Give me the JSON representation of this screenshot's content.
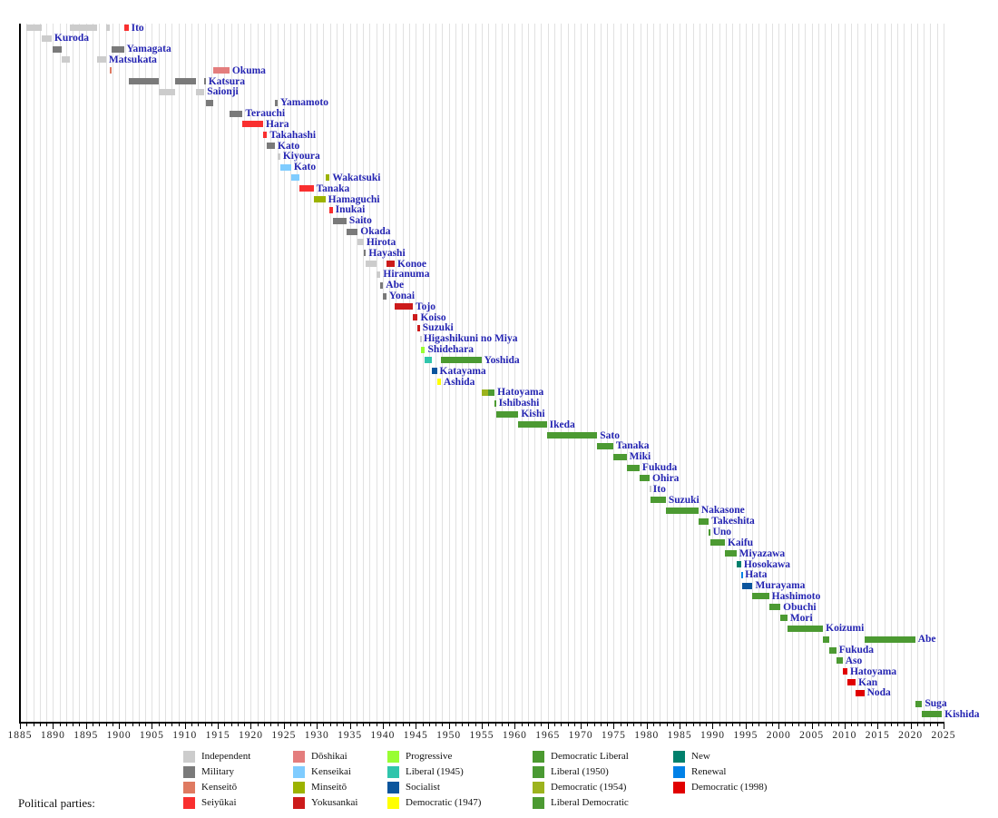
{
  "chart_data": {
    "type": "bar",
    "subtype": "gantt-timeline",
    "title": "",
    "x_axis": {
      "min": 1885,
      "max": 2025,
      "major_tick_step": 5,
      "minor_tick_step": 1,
      "tick_labels": [
        "1885",
        "1890",
        "1895",
        "1900",
        "1905",
        "1910",
        "1915",
        "1920",
        "1925",
        "1930",
        "1935",
        "1940",
        "1945",
        "1950",
        "1955",
        "1960",
        "1965",
        "1970",
        "1975",
        "1980",
        "1985",
        "1990",
        "1995",
        "2000",
        "2005",
        "2010",
        "2015",
        "2020",
        "2025"
      ],
      "grid": "vertical, every year"
    },
    "party_colors": {
      "Independent": "#cccccc",
      "Military": "#7a7a7a",
      "Kenseitō": "#df7a61",
      "Seiyūkai": "#f92f2f",
      "Dōshikai": "#e47d7d",
      "Kenseikai": "#7fccff",
      "Minseitō": "#9cb300",
      "Yokusankai": "#cc1b1b",
      "Progressive": "#99fe33",
      "Liberal (1945)": "#30c5ac",
      "Socialist": "#0b559d",
      "Democratic (1947)": "#ffff00",
      "Democratic Liberal": "#4b9a30",
      "Liberal (1950)": "#4a9a33",
      "Democratic (1954)": "#9cb31d",
      "Liberal Democratic": "#4c9a32",
      "New": "#00806c",
      "Renewal": "#0081e7",
      "Democratic (1998)": "#e10000"
    },
    "rows": [
      {
        "name": "Ito",
        "segments": [
          [
            1885.95,
            1888.3,
            "Independent"
          ],
          [
            1892.6,
            1896.7,
            "Independent"
          ],
          [
            1898.05,
            1898.55,
            "Independent"
          ],
          [
            1900.75,
            1901.45,
            "Seiyūkai"
          ]
        ]
      },
      {
        "name": "Kuroda",
        "segments": [
          [
            1888.3,
            1889.8,
            "Independent"
          ]
        ]
      },
      {
        "name": "Yamagata",
        "segments": [
          [
            1889.95,
            1891.35,
            "Military"
          ],
          [
            1898.85,
            1900.75,
            "Military"
          ]
        ]
      },
      {
        "name": "Matsukata",
        "segments": [
          [
            1891.35,
            1892.6,
            "Independent"
          ],
          [
            1896.7,
            1898.05,
            "Independent"
          ]
        ]
      },
      {
        "name": "Okuma",
        "segments": [
          [
            1898.55,
            1898.85,
            "Kenseitō"
          ],
          [
            1914.3,
            1916.75,
            "Dōshikai"
          ]
        ]
      },
      {
        "name": "Katsura",
        "segments": [
          [
            1901.45,
            1906.0,
            "Military"
          ],
          [
            1908.55,
            1911.65,
            "Military"
          ],
          [
            1912.95,
            1913.15,
            "Military"
          ]
        ]
      },
      {
        "name": "Saionji",
        "segments": [
          [
            1906.0,
            1908.55,
            "Independent"
          ],
          [
            1911.65,
            1912.95,
            "Independent"
          ]
        ]
      },
      {
        "name": "Yamamoto",
        "segments": [
          [
            1913.15,
            1914.3,
            "Military"
          ],
          [
            1923.7,
            1924.05,
            "Military"
          ]
        ]
      },
      {
        "name": "Terauchi",
        "segments": [
          [
            1916.75,
            1918.75,
            "Military"
          ]
        ]
      },
      {
        "name": "Hara",
        "segments": [
          [
            1918.75,
            1921.85,
            "Seiyūkai"
          ]
        ]
      },
      {
        "name": "Takahashi",
        "segments": [
          [
            1921.85,
            1922.45,
            "Seiyūkai"
          ]
        ]
      },
      {
        "name": "Kato",
        "segments": [
          [
            1922.45,
            1923.65,
            "Military"
          ]
        ]
      },
      {
        "name": "Kiyoura",
        "segments": [
          [
            1924.05,
            1924.45,
            "Independent"
          ]
        ]
      },
      {
        "name": "Kato",
        "segments": [
          [
            1924.45,
            1926.1,
            "Kenseikai"
          ]
        ]
      },
      {
        "name": "Wakatsuki",
        "segments": [
          [
            1926.1,
            1927.3,
            "Kenseikai"
          ],
          [
            1931.3,
            1931.95,
            "Minseitō"
          ]
        ]
      },
      {
        "name": "Tanaka",
        "segments": [
          [
            1927.3,
            1929.5,
            "Seiyūkai"
          ]
        ]
      },
      {
        "name": "Hamaguchi",
        "segments": [
          [
            1929.5,
            1931.3,
            "Minseitō"
          ]
        ]
      },
      {
        "name": "Inukai",
        "segments": [
          [
            1931.95,
            1932.4,
            "Seiyūkai"
          ]
        ]
      },
      {
        "name": "Saito",
        "segments": [
          [
            1932.4,
            1934.5,
            "Military"
          ]
        ]
      },
      {
        "name": "Okada",
        "segments": [
          [
            1934.5,
            1936.2,
            "Military"
          ]
        ]
      },
      {
        "name": "Hirota",
        "segments": [
          [
            1936.2,
            1937.1,
            "Independent"
          ]
        ]
      },
      {
        "name": "Hayashi",
        "segments": [
          [
            1937.1,
            1937.45,
            "Military"
          ]
        ]
      },
      {
        "name": "Konoe",
        "segments": [
          [
            1937.45,
            1939.0,
            "Independent"
          ],
          [
            1940.55,
            1941.8,
            "Yokusankai"
          ]
        ]
      },
      {
        "name": "Hiranuma",
        "segments": [
          [
            1939.0,
            1939.65,
            "Independent"
          ]
        ]
      },
      {
        "name": "Abe",
        "segments": [
          [
            1939.65,
            1940.05,
            "Military"
          ]
        ]
      },
      {
        "name": "Yonai",
        "segments": [
          [
            1940.05,
            1940.55,
            "Military"
          ]
        ]
      },
      {
        "name": "Tojo",
        "segments": [
          [
            1941.8,
            1944.55,
            "Yokusankai"
          ]
        ]
      },
      {
        "name": "Koiso",
        "segments": [
          [
            1944.55,
            1945.3,
            "Yokusankai"
          ]
        ]
      },
      {
        "name": "Suzuki",
        "segments": [
          [
            1945.3,
            1945.62,
            "Yokusankai"
          ]
        ]
      },
      {
        "name": "Higashikuni no Miya",
        "segments": [
          [
            1945.62,
            1945.78,
            "Independent"
          ]
        ]
      },
      {
        "name": "Shidehara",
        "segments": [
          [
            1945.78,
            1946.4,
            "Progressive"
          ]
        ]
      },
      {
        "name": "Yoshida",
        "segments": [
          [
            1946.4,
            1947.4,
            "Liberal (1945)"
          ],
          [
            1948.8,
            1950.2,
            "Democratic Liberal"
          ],
          [
            1950.2,
            1954.95,
            "Liberal (1950)"
          ]
        ]
      },
      {
        "name": "Katayama",
        "segments": [
          [
            1947.4,
            1948.2,
            "Socialist"
          ]
        ]
      },
      {
        "name": "Ashida",
        "segments": [
          [
            1948.2,
            1948.8,
            "Democratic (1947)"
          ]
        ]
      },
      {
        "name": "Hatoyama",
        "segments": [
          [
            1954.95,
            1955.9,
            "Democratic (1954)"
          ],
          [
            1955.9,
            1956.95,
            "Liberal Democratic"
          ]
        ]
      },
      {
        "name": "Ishibashi",
        "segments": [
          [
            1956.95,
            1957.15,
            "Liberal Democratic"
          ]
        ]
      },
      {
        "name": "Kishi",
        "segments": [
          [
            1957.15,
            1960.55,
            "Liberal Democratic"
          ]
        ]
      },
      {
        "name": "Ikeda",
        "segments": [
          [
            1960.55,
            1964.85,
            "Liberal Democratic"
          ]
        ]
      },
      {
        "name": "Sato",
        "segments": [
          [
            1964.85,
            1972.5,
            "Liberal Democratic"
          ]
        ]
      },
      {
        "name": "Tanaka",
        "segments": [
          [
            1972.5,
            1974.92,
            "Liberal Democratic"
          ]
        ]
      },
      {
        "name": "Miki",
        "segments": [
          [
            1974.92,
            1976.95,
            "Liberal Democratic"
          ]
        ]
      },
      {
        "name": "Fukuda",
        "segments": [
          [
            1976.95,
            1978.92,
            "Liberal Democratic"
          ]
        ]
      },
      {
        "name": "Ohira",
        "segments": [
          [
            1978.92,
            1980.45,
            "Liberal Democratic"
          ]
        ]
      },
      {
        "name": "Ito",
        "segments": [
          [
            1980.45,
            1980.55,
            "Independent"
          ]
        ]
      },
      {
        "name": "Suzuki",
        "segments": [
          [
            1980.55,
            1982.9,
            "Liberal Democratic"
          ]
        ]
      },
      {
        "name": "Nakasone",
        "segments": [
          [
            1982.9,
            1987.85,
            "Liberal Democratic"
          ]
        ]
      },
      {
        "name": "Takeshita",
        "segments": [
          [
            1987.85,
            1989.42,
            "Liberal Democratic"
          ]
        ]
      },
      {
        "name": "Uno",
        "segments": [
          [
            1989.42,
            1989.6,
            "Liberal Democratic"
          ]
        ]
      },
      {
        "name": "Kaifu",
        "segments": [
          [
            1989.6,
            1991.85,
            "Liberal Democratic"
          ]
        ]
      },
      {
        "name": "Miyazawa",
        "segments": [
          [
            1991.85,
            1993.6,
            "Liberal Democratic"
          ]
        ]
      },
      {
        "name": "Hosokawa",
        "segments": [
          [
            1993.6,
            1994.32,
            "New"
          ]
        ]
      },
      {
        "name": "Hata",
        "segments": [
          [
            1994.32,
            1994.5,
            "Renewal"
          ]
        ]
      },
      {
        "name": "Murayama",
        "segments": [
          [
            1994.5,
            1996.05,
            "Socialist"
          ]
        ]
      },
      {
        "name": "Hashimoto",
        "segments": [
          [
            1996.05,
            1998.55,
            "Liberal Democratic"
          ]
        ]
      },
      {
        "name": "Obuchi",
        "segments": [
          [
            1998.55,
            2000.27,
            "Liberal Democratic"
          ]
        ]
      },
      {
        "name": "Mori",
        "segments": [
          [
            2000.27,
            2001.32,
            "Liberal Democratic"
          ]
        ]
      },
      {
        "name": "Koizumi",
        "segments": [
          [
            2001.32,
            2006.73,
            "Liberal Democratic"
          ]
        ]
      },
      {
        "name": "Abe",
        "segments": [
          [
            2006.73,
            2007.73,
            "Liberal Democratic"
          ],
          [
            2012.98,
            2020.7,
            "Liberal Democratic"
          ]
        ]
      },
      {
        "name": "Fukuda",
        "segments": [
          [
            2007.73,
            2008.73,
            "Liberal Democratic"
          ]
        ]
      },
      {
        "name": "Aso",
        "segments": [
          [
            2008.73,
            2009.7,
            "Liberal Democratic"
          ]
        ]
      },
      {
        "name": "Hatoyama",
        "segments": [
          [
            2009.7,
            2010.42,
            "Democratic (1998)"
          ]
        ]
      },
      {
        "name": "Kan",
        "segments": [
          [
            2010.42,
            2011.67,
            "Democratic (1998)"
          ]
        ]
      },
      {
        "name": "Noda",
        "segments": [
          [
            2011.67,
            2012.98,
            "Democratic (1998)"
          ]
        ]
      },
      {
        "name": "Suga",
        "segments": [
          [
            2020.7,
            2021.75,
            "Liberal Democratic"
          ]
        ]
      },
      {
        "name": "Kishida",
        "segments": [
          [
            2021.75,
            2024.75,
            "Liberal Democratic"
          ]
        ]
      }
    ],
    "legend": {
      "position": "bottom",
      "columns": [
        [
          "Independent",
          "Military",
          "Kenseitō",
          "Seiyūkai"
        ],
        [
          "Dōshikai",
          "Kenseikai",
          "Minseitō",
          "Yokusankai"
        ],
        [
          "Progressive",
          "Liberal (1945)",
          "Socialist",
          "Democratic (1947)"
        ],
        [
          "Democratic Liberal",
          "Liberal (1950)",
          "Democratic (1954)",
          "Liberal Democratic"
        ],
        [
          "New",
          "Renewal",
          "Democratic (1998)"
        ]
      ]
    }
  },
  "legend": {
    "caption": "Political parties:"
  },
  "label_color": "#2424b2"
}
